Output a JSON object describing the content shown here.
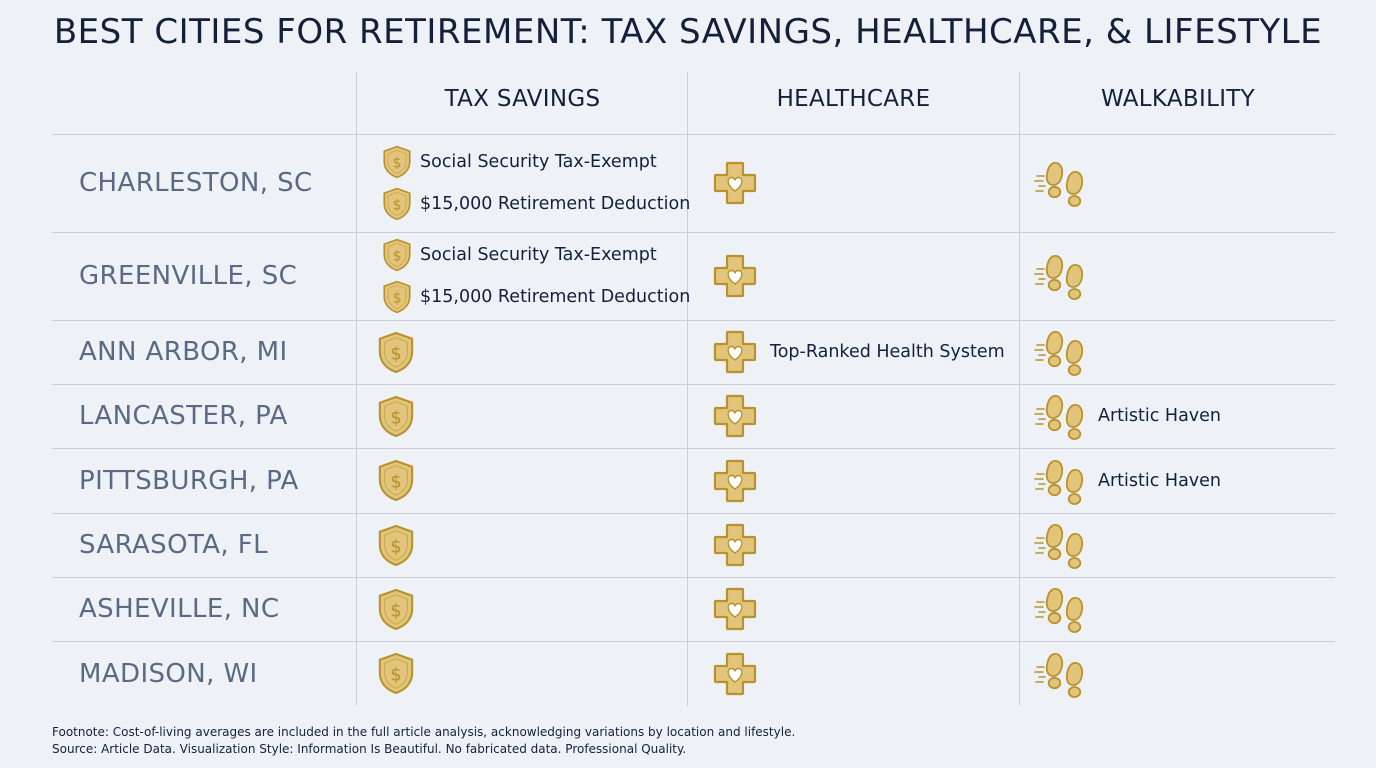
{
  "title": "BEST CITIES FOR RETIREMENT: TAX SAVINGS, HEALTHCARE, & LIFESTYLE",
  "columns": [
    "TAX SAVINGS",
    "HEALTHCARE",
    "WALKABILITY"
  ],
  "icons": {
    "tax": "shield-dollar-icon",
    "health": "medical-cross-heart-icon",
    "walk": "footprints-icon"
  },
  "colors": {
    "background": "#eef2f7",
    "gold_fill": "#e2c47a",
    "gold_stroke": "#b7922f",
    "city_text": "#5a6a84",
    "heading_text": "#14203a"
  },
  "rows": [
    {
      "city": "CHARLESTON, SC",
      "tax": [
        "Social Security Tax-Exempt",
        "$15,000 Retirement Deduction"
      ],
      "health": "",
      "walk": ""
    },
    {
      "city": "GREENVILLE, SC",
      "tax": [
        "Social Security Tax-Exempt",
        "$15,000 Retirement Deduction"
      ],
      "health": "",
      "walk": ""
    },
    {
      "city": "ANN ARBOR, MI",
      "tax": [],
      "health": "Top-Ranked Health System",
      "walk": ""
    },
    {
      "city": "LANCASTER, PA",
      "tax": [],
      "health": "",
      "walk": "Artistic Haven"
    },
    {
      "city": "PITTSBURGH, PA",
      "tax": [],
      "health": "",
      "walk": "Artistic Haven"
    },
    {
      "city": "SARASOTA, FL",
      "tax": [],
      "health": "",
      "walk": ""
    },
    {
      "city": "ASHEVILLE, NC",
      "tax": [],
      "health": "",
      "walk": ""
    },
    {
      "city": "MADISON, WI",
      "tax": [],
      "health": "",
      "walk": ""
    }
  ],
  "footnote": "Footnote: Cost-of-living averages are included in the full article analysis, acknowledging variations by location and lifestyle.",
  "source": "Source: Article Data. Visualization Style: Information Is Beautiful. No fabricated data. Professional Quality."
}
